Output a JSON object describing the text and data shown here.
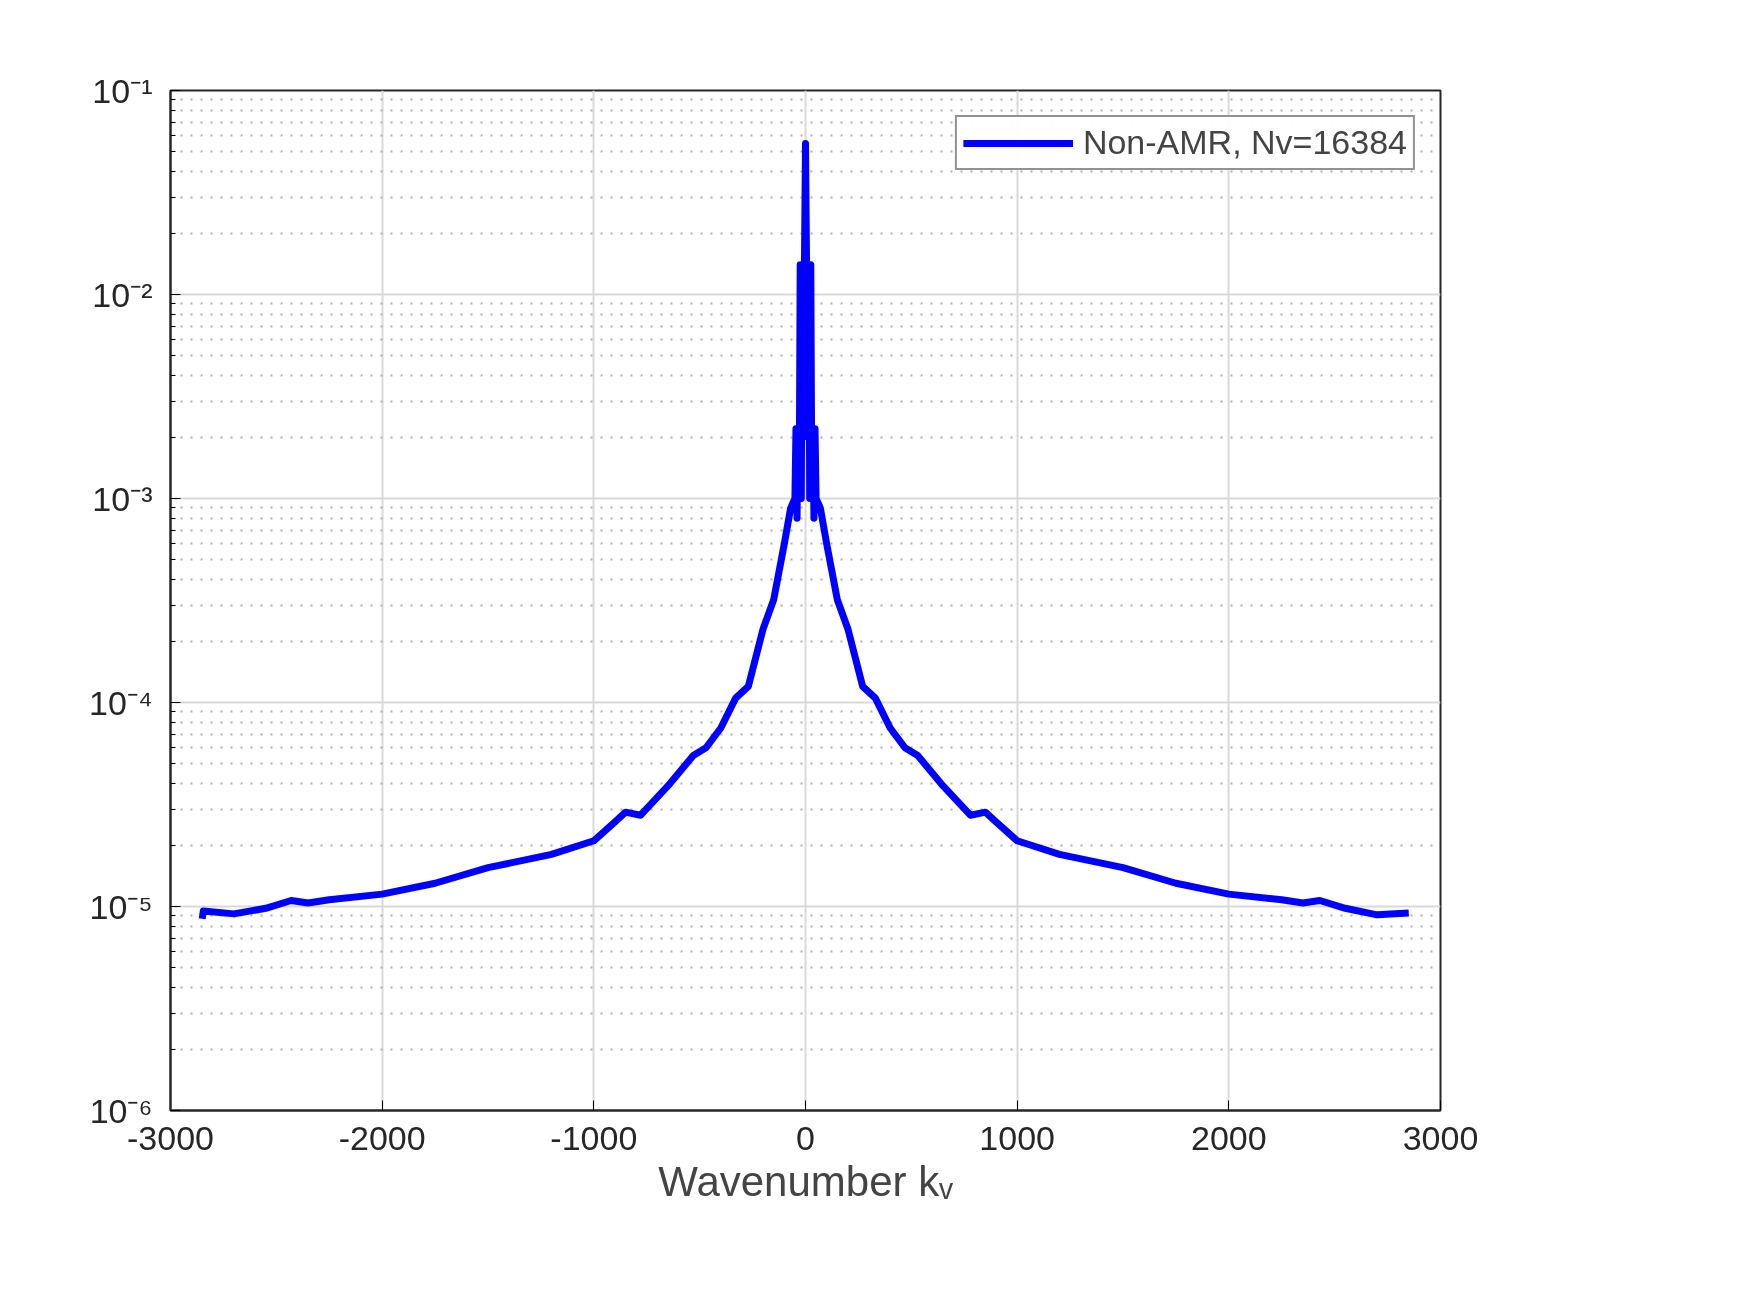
{
  "chart_data": {
    "type": "line",
    "xlabel": "Wavenumber kᵥ",
    "xlim": [
      -3000,
      3000
    ],
    "xticks": [
      -3000,
      -2000,
      -1000,
      0,
      1000,
      2000,
      3000
    ],
    "ylim": [
      1e-06,
      0.1
    ],
    "yticks": [
      {
        "value": 1e-06,
        "label": "10⁻⁶"
      },
      {
        "value": 1e-05,
        "label": "10⁻⁵"
      },
      {
        "value": 0.0001,
        "label": "10⁻⁴"
      },
      {
        "value": 0.001,
        "label": "10⁻³"
      },
      {
        "value": 0.01,
        "label": "10⁻²"
      },
      {
        "value": 0.1,
        "label": "10⁻¹"
      }
    ],
    "log": "y",
    "grid": true,
    "legend": "top right",
    "line_style": "solid",
    "marker": "none",
    "x": [
      -2850,
      -2845,
      -2700,
      -2550,
      -2430,
      -2350,
      -2250,
      -2000,
      -1750,
      -1500,
      -1200,
      -1000,
      -900,
      -850,
      -780,
      -650,
      -530,
      -470,
      -400,
      -330,
      -270,
      -200,
      -150,
      -100,
      -70,
      -50,
      -45,
      -40,
      -35,
      -30,
      -25,
      -20,
      -15,
      -10,
      -5,
      0,
      5,
      10,
      15,
      20,
      25,
      30,
      35,
      40,
      45,
      50,
      70,
      100,
      150,
      200,
      270,
      330,
      400,
      470,
      530,
      650,
      780,
      850,
      900,
      1000,
      1200,
      1500,
      1750,
      2000,
      2250,
      2350,
      2430,
      2550,
      2700,
      2850
    ],
    "series": [
      {
        "name": "Non-AMR, Nv=16384",
        "color": "#0000ff",
        "values": [
          8.7e-06,
          9.5e-06,
          9.2e-06,
          9.8e-06,
          1.07e-05,
          1.04e-05,
          1.08e-05,
          1.15e-05,
          1.3e-05,
          1.55e-05,
          1.8e-05,
          2.1e-05,
          2.6e-05,
          2.9e-05,
          2.8e-05,
          3.9e-05,
          5.5e-05,
          6e-05,
          7.5e-05,
          0.000105,
          0.00012,
          0.00023,
          0.00032,
          0.0006,
          0.0009,
          0.001,
          0.0022,
          0.0008,
          0.0022,
          0.001,
          0.014,
          0.001,
          0.014,
          0.002,
          0.014,
          0.055,
          0.014,
          0.002,
          0.014,
          0.001,
          0.014,
          0.001,
          0.0022,
          0.0008,
          0.0022,
          0.001,
          0.0009,
          0.0006,
          0.00032,
          0.00023,
          0.00012,
          0.000105,
          7.5e-05,
          6e-05,
          5.5e-05,
          3.9e-05,
          2.8e-05,
          2.9e-05,
          2.6e-05,
          2.1e-05,
          1.8e-05,
          1.55e-05,
          1.3e-05,
          1.15e-05,
          1.08e-05,
          1.04e-05,
          1.07e-05,
          9.8e-06,
          9.1e-06,
          9.3e-06
        ]
      }
    ]
  }
}
